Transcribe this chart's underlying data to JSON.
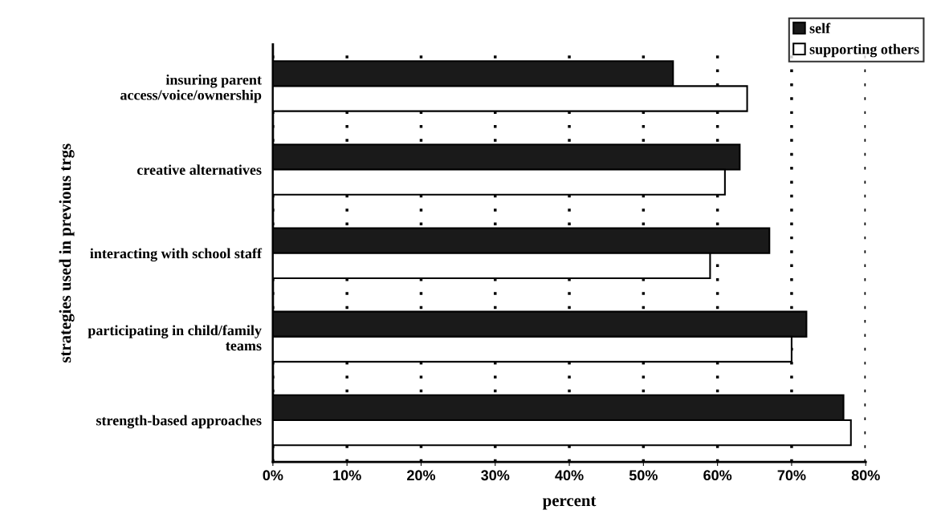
{
  "chart_data": {
    "type": "bar",
    "orientation": "horizontal",
    "xlabel": "percent",
    "ylabel": "strategies used in previous trgs",
    "categories": [
      "insuring parent\naccess/voice/ownership",
      "creative alternatives",
      "interacting with school staff",
      "participating in child/family\nteams",
      "strength-based approaches"
    ],
    "series": [
      {
        "name": "self",
        "color": "#1a1a1a",
        "values": [
          54,
          63,
          67,
          72,
          77
        ]
      },
      {
        "name": "supporting others",
        "color": "#ffffff",
        "values": [
          64,
          61,
          59,
          70,
          78
        ]
      }
    ],
    "xlim": [
      0,
      80
    ],
    "xticks": [
      {
        "value": 0,
        "label": "0%"
      },
      {
        "value": 10,
        "label": "10%"
      },
      {
        "value": 20,
        "label": "20%"
      },
      {
        "value": 30,
        "label": "30%"
      },
      {
        "value": 40,
        "label": "40%"
      },
      {
        "value": 50,
        "label": "50%"
      },
      {
        "value": 60,
        "label": "60%"
      },
      {
        "value": 70,
        "label": "70%"
      },
      {
        "value": 80,
        "label": "80%"
      }
    ],
    "grid": "x",
    "legend": "top right"
  }
}
